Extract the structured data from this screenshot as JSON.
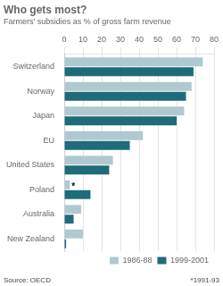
{
  "chart_data": {
    "type": "bar",
    "orientation": "horizontal",
    "title": "Who gets most?",
    "subtitle": "Farmers' subsidies as % of gross farm revenue",
    "categories": [
      "Switzerland",
      "Norway",
      "Japan",
      "EU",
      "United States",
      "Poland",
      "Australia",
      "New Zealand"
    ],
    "series": [
      {
        "name": "1986-88",
        "color": "#b0c9d0",
        "values": [
          74,
          68,
          64,
          42,
          26,
          3,
          9,
          10
        ]
      },
      {
        "name": "1999-2001",
        "color": "#1e6b7a",
        "values": [
          69,
          65,
          60,
          35,
          24,
          14,
          5,
          1
        ]
      }
    ],
    "xlim": [
      0,
      80
    ],
    "xticks": [
      0,
      10,
      20,
      30,
      40,
      50,
      60,
      70,
      80
    ],
    "grid": true,
    "legend": "lower right",
    "annotations": [
      {
        "text": "*",
        "category": "Poland",
        "series": "1986-88"
      }
    ],
    "source": "Source: OECD",
    "footnote": "*1991-93"
  }
}
